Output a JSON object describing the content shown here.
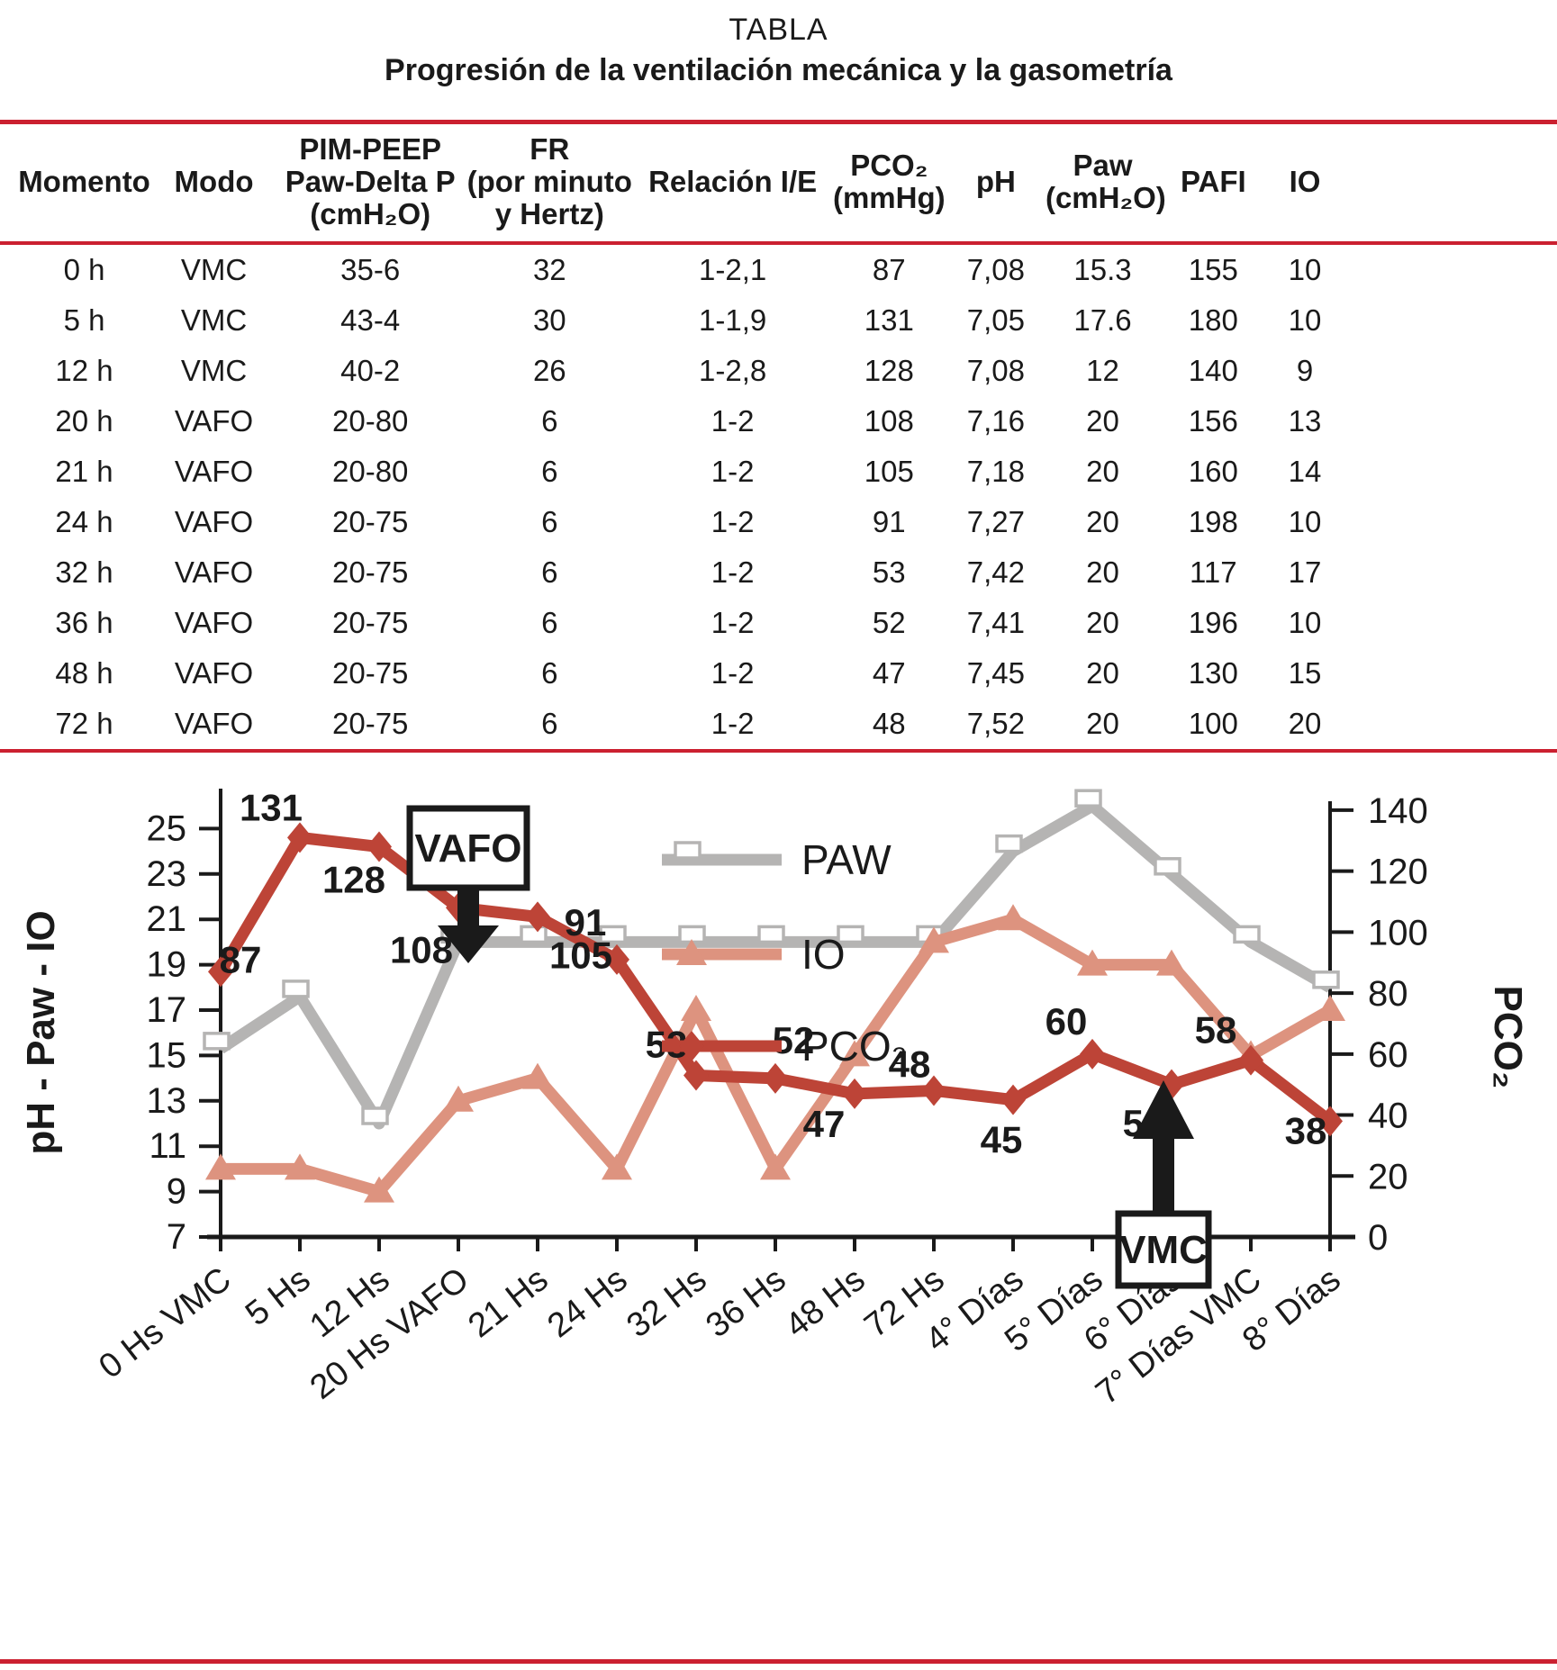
{
  "title": {
    "line1": "TABLA",
    "line2": "Progresión de la ventilación mecánica y la gasometría"
  },
  "table": {
    "headers": [
      {
        "lines": [
          "Momento"
        ]
      },
      {
        "lines": [
          "Modo"
        ]
      },
      {
        "lines": [
          "PIM-PEEP",
          "Paw-Delta P",
          "(cmH₂O)"
        ]
      },
      {
        "lines": [
          "FR",
          "(por minuto",
          "y Hertz)"
        ]
      },
      {
        "lines": [
          "Relación I/E"
        ]
      },
      {
        "lines": [
          "PCO₂",
          "(mmHg)"
        ]
      },
      {
        "lines": [
          "pH"
        ]
      },
      {
        "lines": [
          "Paw",
          "(cmH₂O)"
        ]
      },
      {
        "lines": [
          "PAFI"
        ]
      },
      {
        "lines": [
          "IO"
        ]
      }
    ],
    "rows": [
      [
        "0 h",
        "VMC",
        "35-6",
        "32",
        "1-2,1",
        "87",
        "7,08",
        "15.3",
        "155",
        "10"
      ],
      [
        "5 h",
        "VMC",
        "43-4",
        "30",
        "1-1,9",
        "131",
        "7,05",
        "17.6",
        "180",
        "10"
      ],
      [
        "12 h",
        "VMC",
        "40-2",
        "26",
        "1-2,8",
        "128",
        "7,08",
        "12",
        "140",
        "9"
      ],
      [
        "20 h",
        "VAFO",
        "20-80",
        "6",
        "1-2",
        "108",
        "7,16",
        "20",
        "156",
        "13"
      ],
      [
        "21 h",
        "VAFO",
        "20-80",
        "6",
        "1-2",
        "105",
        "7,18",
        "20",
        "160",
        "14"
      ],
      [
        "24 h",
        "VAFO",
        "20-75",
        "6",
        "1-2",
        "91",
        "7,27",
        "20",
        "198",
        "10"
      ],
      [
        "32 h",
        "VAFO",
        "20-75",
        "6",
        "1-2",
        "53",
        "7,42",
        "20",
        "117",
        "17"
      ],
      [
        "36 h",
        "VAFO",
        "20-75",
        "6",
        "1-2",
        "52",
        "7,41",
        "20",
        "196",
        "10"
      ],
      [
        "48 h",
        "VAFO",
        "20-75",
        "6",
        "1-2",
        "47",
        "7,45",
        "20",
        "130",
        "15"
      ],
      [
        "72 h",
        "VAFO",
        "20-75",
        "6",
        "1-2",
        "48",
        "7,52",
        "20",
        "100",
        "20"
      ]
    ]
  },
  "chart_data": {
    "type": "line",
    "dual_axis": true,
    "categories": [
      "0 Hs VMC",
      "5 Hs",
      "12 Hs",
      "20 Hs VAFO",
      "21 Hs",
      "24 Hs",
      "32 Hs",
      "36 Hs",
      "48 Hs",
      "72 Hs",
      "4° Días",
      "5° Días",
      "6° Días",
      "7° Días VMC",
      "8° Días"
    ],
    "series": [
      {
        "name": "PAW",
        "axis": "left",
        "color": "#b5b4b3",
        "marker": "square",
        "values": [
          15.3,
          17.6,
          12,
          20,
          20,
          20,
          20,
          20,
          20,
          20,
          24,
          26,
          23,
          20,
          18
        ]
      },
      {
        "name": "IO",
        "axis": "left",
        "color": "#dd937f",
        "marker": "triangle",
        "values": [
          10,
          10,
          9,
          13,
          14,
          10,
          17,
          10,
          15,
          20,
          21,
          19,
          19,
          15,
          17
        ]
      },
      {
        "name": "PCO₂",
        "axis": "right",
        "color": "#bd4437",
        "marker": "diamond",
        "values": [
          87,
          131,
          128,
          108,
          105,
          91,
          53,
          52,
          47,
          48,
          45,
          60,
          50,
          58,
          38
        ],
        "show_labels": true
      }
    ],
    "left_axis": {
      "label": "pH - Paw - IO",
      "min": 7,
      "max": 25,
      "step": 2,
      "ticks": [
        7,
        9,
        11,
        13,
        15,
        17,
        19,
        21,
        23,
        25
      ]
    },
    "right_axis": {
      "label": "PCO₂",
      "min": 0,
      "max": 140,
      "step": 20,
      "ticks": [
        0,
        20,
        40,
        60,
        80,
        100,
        120,
        140
      ]
    },
    "legend": {
      "position": "top-center",
      "entries": [
        "PAW",
        "IO",
        "PCO₂"
      ]
    },
    "annotations": [
      {
        "text": "VAFO",
        "arrow": "down",
        "at_category": "20 Hs VAFO"
      },
      {
        "text": "VMC",
        "arrow": "up",
        "at_category": "7° Días VMC"
      }
    ],
    "grid": false
  },
  "rule_color": "#cb2030"
}
